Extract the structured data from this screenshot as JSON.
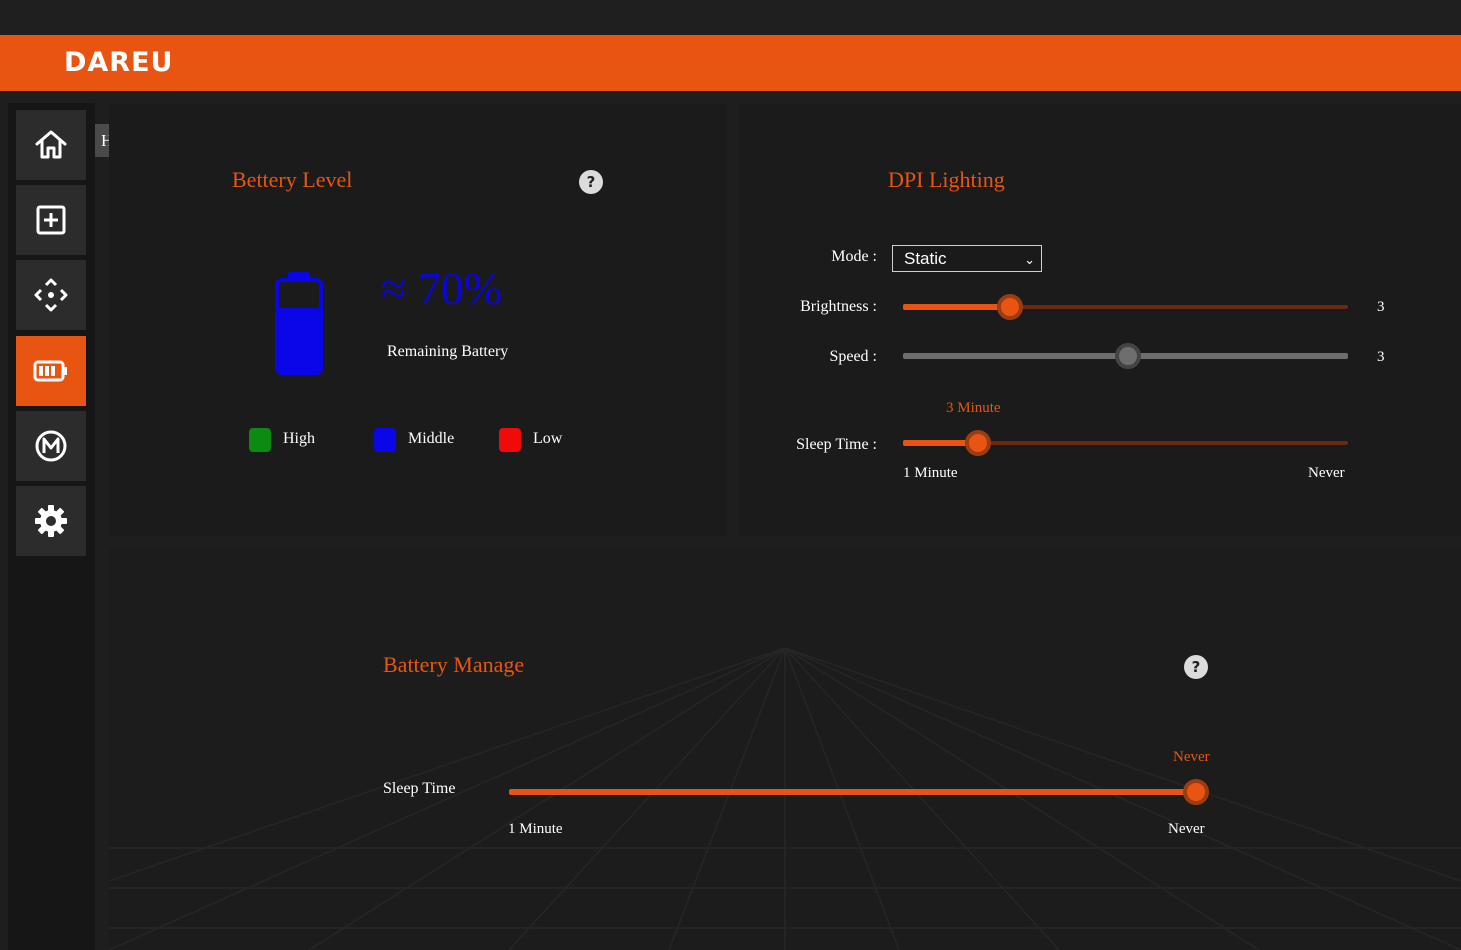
{
  "app": {
    "logo_text": "DAREU"
  },
  "sidebar": {
    "tooltip": "Home",
    "items": [
      {
        "name": "home",
        "icon": "home-icon"
      },
      {
        "name": "add",
        "icon": "plus-square-icon"
      },
      {
        "name": "move",
        "icon": "move-arrows-icon"
      },
      {
        "name": "battery",
        "icon": "battery-icon",
        "active": true
      },
      {
        "name": "macro",
        "icon": "macro-m-icon"
      },
      {
        "name": "settings",
        "icon": "gear-icon"
      }
    ]
  },
  "battery_level": {
    "title": "Bettery Level",
    "help": "?",
    "percent_text": "≈ 70%",
    "level_percent": 70,
    "remaining_label": "Remaining Battery",
    "legend": [
      {
        "label": "High",
        "color": "#0d8a12"
      },
      {
        "label": "Middle",
        "color": "#0a06e8"
      },
      {
        "label": "Low",
        "color": "#f00a0a"
      }
    ]
  },
  "dpi_lighting": {
    "title": "DPI Lighting",
    "mode_label": "Mode :",
    "mode_value": "Static",
    "brightness_label": "Brightness :",
    "brightness_value": "3",
    "brightness_fraction": 0.24,
    "speed_label": "Speed :",
    "speed_value": "3",
    "speed_fraction": 0.505,
    "sleep_label": "Sleep Time :",
    "sleep_current": "3 Minute",
    "sleep_fraction": 0.168,
    "sleep_min": "1 Minute",
    "sleep_max": "Never"
  },
  "battery_manage": {
    "title": "Battery Manage",
    "help": "?",
    "sleep_label": "Sleep Time",
    "sleep_current": "Never",
    "sleep_fraction": 1.0,
    "sleep_min": "1 Minute",
    "sleep_max": "Never"
  },
  "colors": {
    "accent": "#e85513",
    "panel": "#1b1b1b",
    "track_dim": "#6a2a12",
    "track_gray": "#6e6e6e"
  }
}
